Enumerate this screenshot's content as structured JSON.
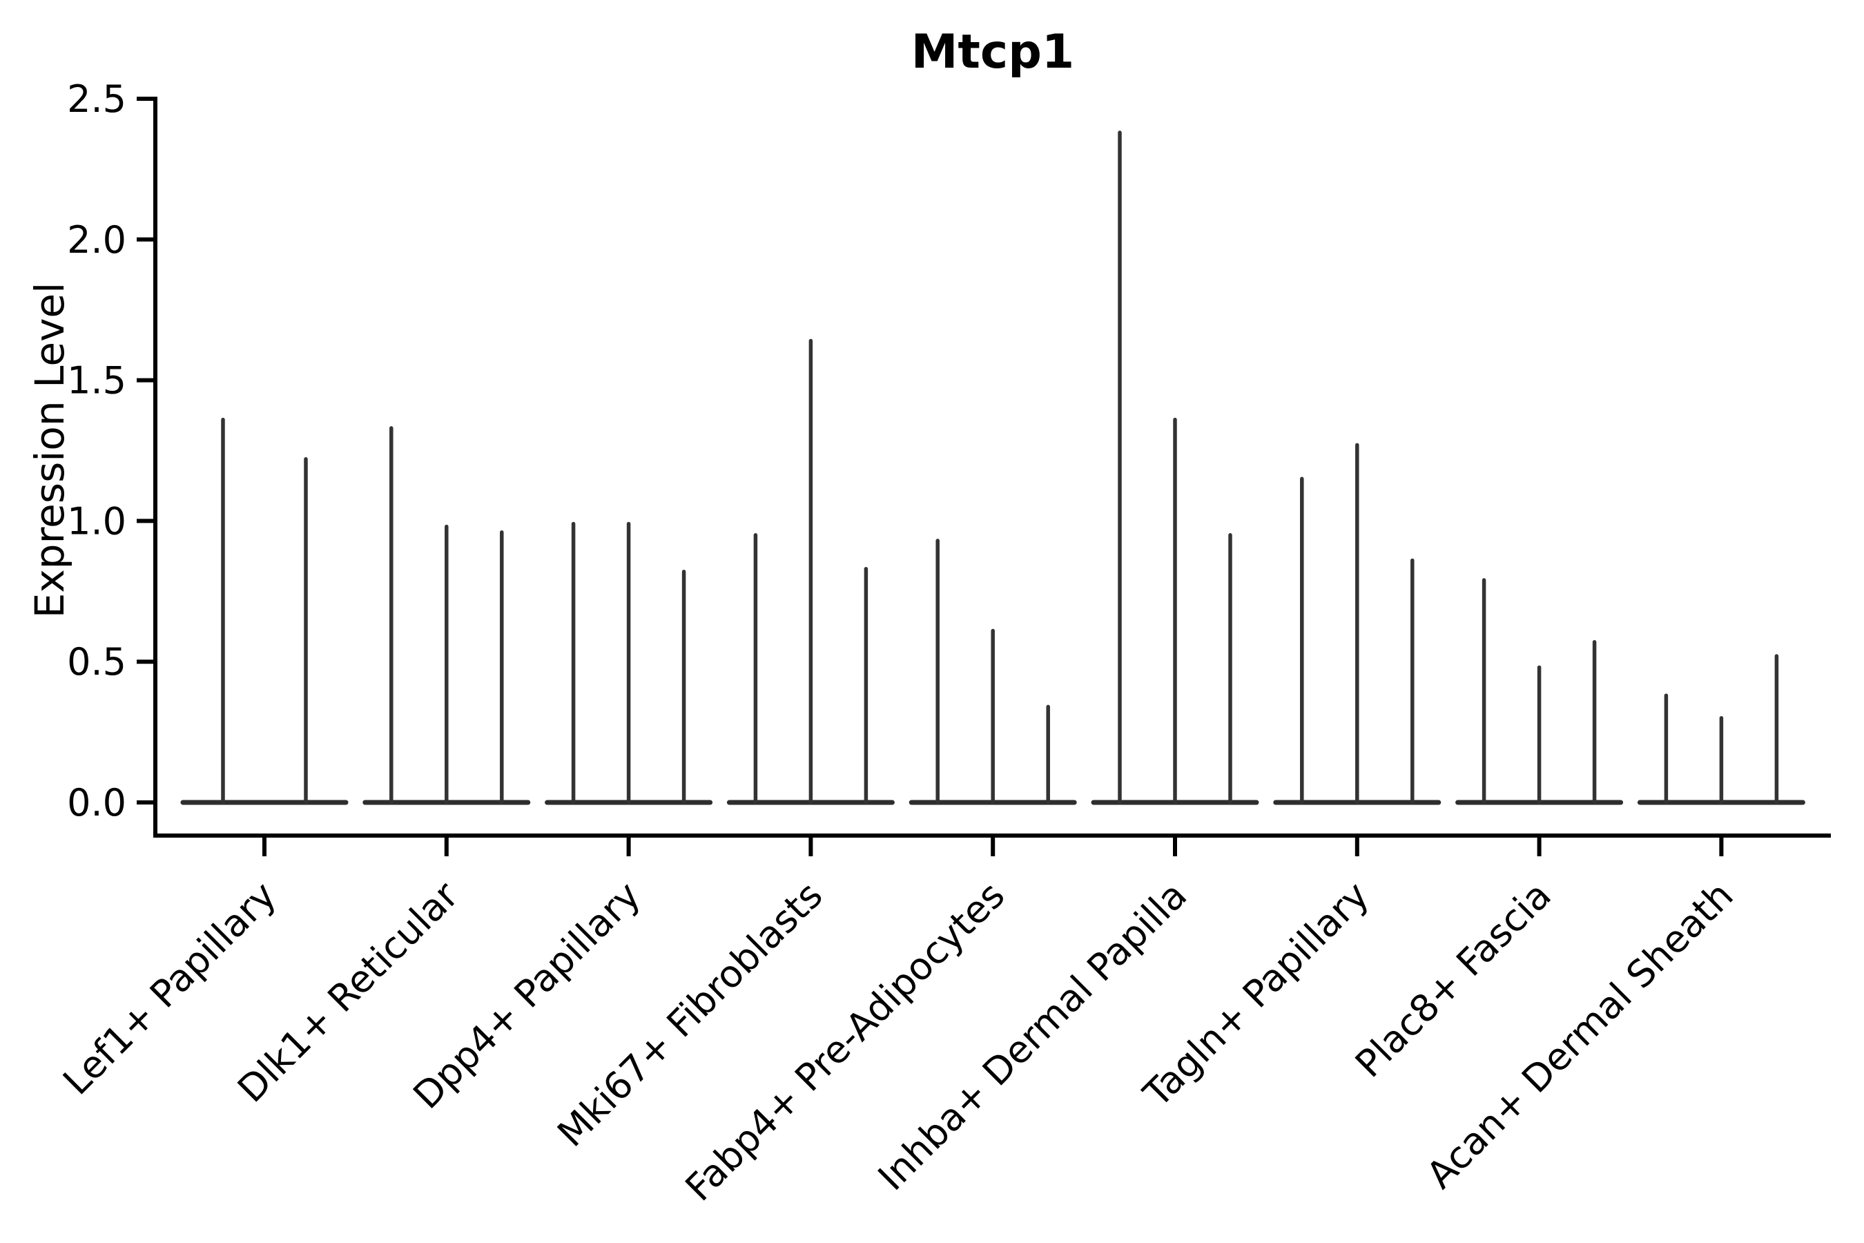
{
  "figure": {
    "title": "Mtcp1",
    "y_axis_label": "Expression Level"
  },
  "chart_data": {
    "type": "violin",
    "title": "Mtcp1",
    "xlabel": "",
    "ylabel": "Expression Level",
    "ylim": [
      0,
      2.5
    ],
    "yticks": [
      0.0,
      0.5,
      1.0,
      1.5,
      2.0,
      2.5
    ],
    "ytick_labels": [
      "0.0",
      "0.5",
      "1.0",
      "1.5",
      "2.0",
      "2.5"
    ],
    "grid": false,
    "legend": null,
    "description": "Violin plot of Mtcp1 expression; each cluster shows 2-3 extremely thin violins: a flat base at 0 with narrow spikes rising to the max expression value.",
    "categories": [
      "Lef1+ Papillary",
      "Dlk1+ Reticular",
      "Dpp4+ Papillary",
      "Mki67+ Fibroblasts",
      "Fabp4+ Pre-Adipocytes",
      "Inhba+ Dermal Papilla",
      "Tagln+ Papillary",
      "Plac8+ Fascia",
      "Acan+ Dermal Sheath"
    ],
    "groups": [
      {
        "label": "Lef1+ Papillary",
        "spike_heights": [
          1.36,
          1.22
        ]
      },
      {
        "label": "Dlk1+ Reticular",
        "spike_heights": [
          1.33,
          0.98,
          0.96
        ]
      },
      {
        "label": "Dpp4+ Papillary",
        "spike_heights": [
          0.99,
          0.99,
          0.82
        ]
      },
      {
        "label": "Mki67+ Fibroblasts",
        "spike_heights": [
          0.95,
          1.64,
          0.83
        ]
      },
      {
        "label": "Fabp4+ Pre-Adipocytes",
        "spike_heights": [
          0.93,
          0.61,
          0.34
        ]
      },
      {
        "label": "Inhba+ Dermal Papilla",
        "spike_heights": [
          2.38,
          1.36,
          0.95
        ]
      },
      {
        "label": "Tagln+ Papillary",
        "spike_heights": [
          1.15,
          1.27,
          0.86
        ]
      },
      {
        "label": "Plac8+ Fascia",
        "spike_heights": [
          0.79,
          0.48,
          0.57
        ]
      },
      {
        "label": "Acan+ Dermal Sheath",
        "spike_heights": [
          0.38,
          0.3,
          0.52
        ]
      }
    ],
    "colors": {
      "violin_line": "#333333",
      "violin_base": "#2e2e2e",
      "axis": "#000000",
      "text": "#000000",
      "background": "#ffffff"
    }
  }
}
